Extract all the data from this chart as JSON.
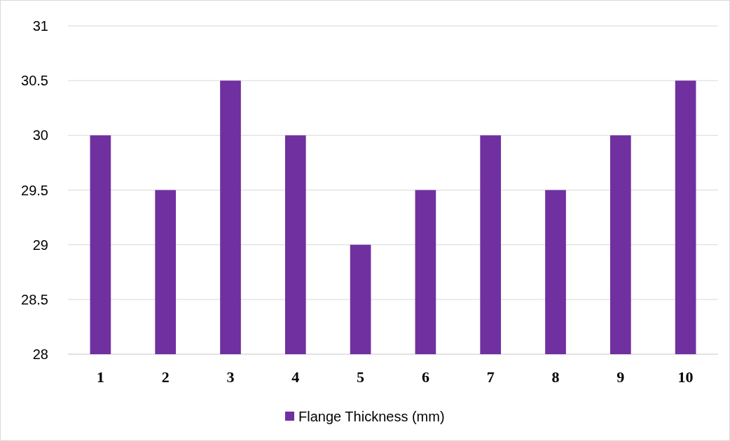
{
  "chart_data": {
    "type": "bar",
    "categories": [
      "1",
      "2",
      "3",
      "4",
      "5",
      "6",
      "7",
      "8",
      "9",
      "10"
    ],
    "series": [
      {
        "name": "Flange Thickness (mm)",
        "color": "#7030a0",
        "values": [
          30,
          29.5,
          30.5,
          30,
          29,
          29.5,
          30,
          29.5,
          30,
          30.5
        ]
      }
    ],
    "ylim": [
      28,
      31
    ],
    "yticks": [
      28,
      28.5,
      29,
      29.5,
      30,
      30.5,
      31
    ],
    "grid": "y",
    "legend": "bottom"
  }
}
